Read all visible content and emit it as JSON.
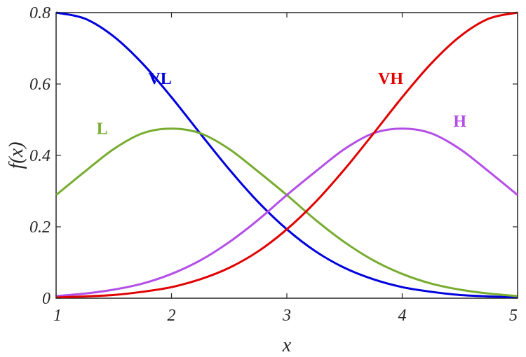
{
  "chart_data": {
    "type": "line",
    "xlabel": "x",
    "ylabel": "f(x)",
    "xlim": [
      1,
      5
    ],
    "ylim": [
      0,
      0.8
    ],
    "x_ticks": [
      1,
      2,
      3,
      4,
      5
    ],
    "x_tick_labels": [
      "1",
      "2",
      "3",
      "4",
      "5"
    ],
    "y_ticks": [
      0,
      0.2,
      0.4,
      0.6,
      0.8
    ],
    "y_tick_labels": [
      "0",
      "0.2",
      "0.4",
      "0.6",
      "0.8"
    ],
    "grid": false,
    "x": [
      1,
      1.25,
      1.5,
      1.75,
      2,
      2.25,
      2.5,
      2.75,
      3,
      3.25,
      3.5,
      3.75,
      4,
      4.25,
      4.5,
      4.75,
      5
    ],
    "series": [
      {
        "name": "VL",
        "color": "#0000dd",
        "values": [
          0.8,
          0.783,
          0.733,
          0.657,
          0.563,
          0.461,
          0.361,
          0.27,
          0.193,
          0.131,
          0.085,
          0.053,
          0.031,
          0.018,
          0.009,
          0.005,
          0.002
        ]
      },
      {
        "name": "L",
        "color": "#77ac30",
        "values": [
          0.289,
          0.355,
          0.418,
          0.462,
          0.475,
          0.462,
          0.418,
          0.355,
          0.289,
          0.219,
          0.157,
          0.106,
          0.068,
          0.041,
          0.024,
          0.013,
          0.006
        ]
      },
      {
        "name": "H",
        "color": "#b44ee6",
        "values": [
          0.006,
          0.013,
          0.024,
          0.041,
          0.068,
          0.106,
          0.157,
          0.219,
          0.289,
          0.355,
          0.418,
          0.462,
          0.475,
          0.462,
          0.418,
          0.355,
          0.289
        ]
      },
      {
        "name": "VH",
        "color": "#e00000",
        "values": [
          0.002,
          0.005,
          0.009,
          0.018,
          0.031,
          0.053,
          0.085,
          0.131,
          0.193,
          0.27,
          0.361,
          0.461,
          0.563,
          0.657,
          0.733,
          0.783,
          0.8
        ]
      }
    ],
    "annotations": [
      {
        "text": "VL",
        "color": "#0000dd",
        "x": 1.9,
        "y": 0.6
      },
      {
        "text": "L",
        "color": "#77ac30",
        "x": 1.4,
        "y": 0.46
      },
      {
        "text": "VH",
        "color": "#e00000",
        "x": 3.9,
        "y": 0.6
      },
      {
        "text": "H",
        "color": "#b44ee6",
        "x": 4.5,
        "y": 0.48
      }
    ]
  }
}
